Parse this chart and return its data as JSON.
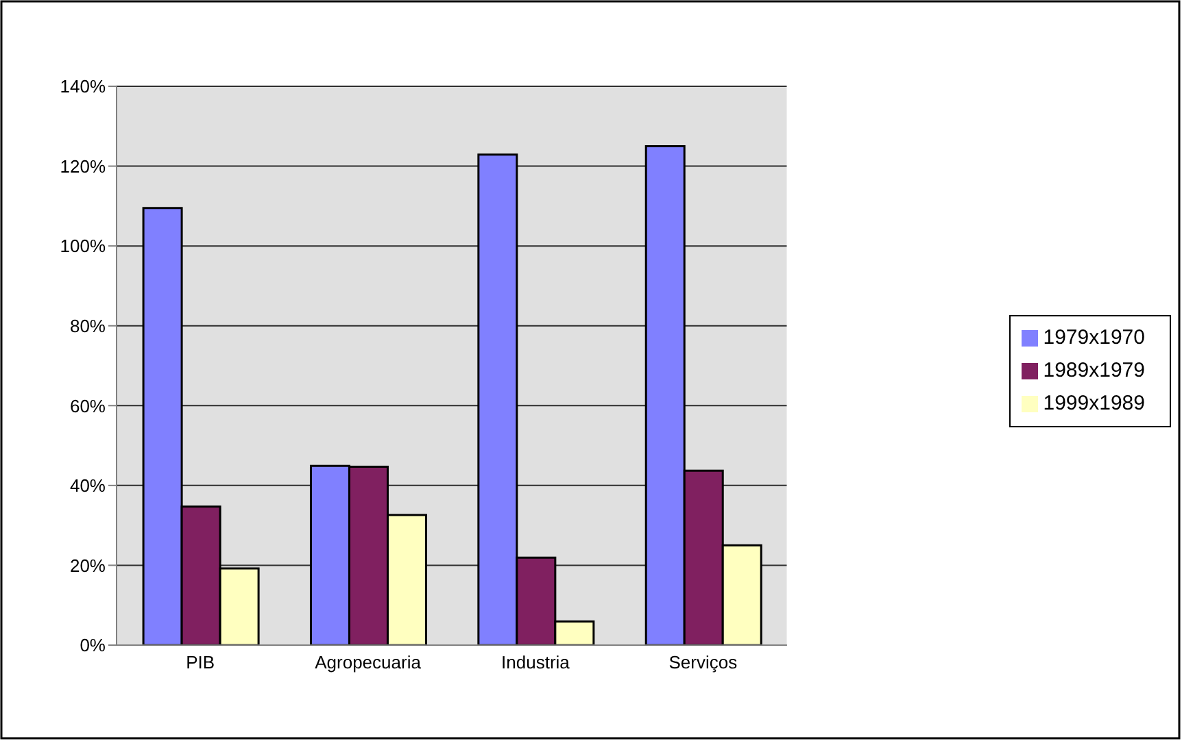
{
  "chart_data": {
    "type": "bar",
    "categories": [
      "PIB",
      "Agropecuaria",
      "Industria",
      "Serviços"
    ],
    "series": [
      {
        "name": "1979x1970",
        "color": "#8080ff",
        "values": [
          109.5,
          44.9,
          122.9,
          125
        ]
      },
      {
        "name": "1989x1979",
        "color": "#802060",
        "values": [
          34.7,
          44.7,
          21.9,
          43.7
        ]
      },
      {
        "name": "1999x1989",
        "color": "#ffffc0",
        "values": [
          19.2,
          32.6,
          5.9,
          25
        ]
      }
    ],
    "ylim": [
      0,
      140
    ],
    "yticks": [
      {
        "value": 0,
        "label": "0%"
      },
      {
        "value": 20,
        "label": "20%"
      },
      {
        "value": 40,
        "label": "40%"
      },
      {
        "value": 60,
        "label": "60%"
      },
      {
        "value": 80,
        "label": "80%"
      },
      {
        "value": 100,
        "label": "100%"
      },
      {
        "value": 120,
        "label": "120%"
      },
      {
        "value": 140,
        "label": "140%"
      }
    ],
    "grid": "y",
    "legend": "right"
  }
}
